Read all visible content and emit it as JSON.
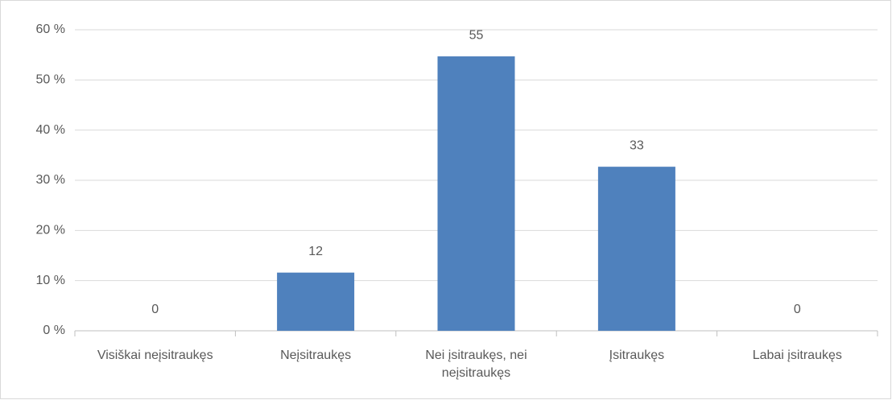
{
  "chart_data": {
    "type": "bar",
    "categories": [
      "Visiškai neįsitraukęs",
      "Neįsitraukęs",
      "Nei įsitraukęs, nei neįsitraukęs",
      "Įsitraukęs",
      "Labai įsitraukęs"
    ],
    "values": [
      0,
      11.6,
      54.7,
      32.7,
      0
    ],
    "value_labels": [
      "0",
      "12",
      "55",
      "33",
      "0"
    ],
    "color": "#4f81bd",
    "ylim": [
      0,
      60
    ],
    "yticks": [
      {
        "value": 0,
        "label": "0 %"
      },
      {
        "value": 10,
        "label": "10 %"
      },
      {
        "value": 20,
        "label": "20 %"
      },
      {
        "value": 30,
        "label": "30 %"
      },
      {
        "value": 40,
        "label": "40 %"
      },
      {
        "value": 50,
        "label": "50 %"
      },
      {
        "value": 60,
        "label": "60 %"
      }
    ],
    "grid": true
  }
}
